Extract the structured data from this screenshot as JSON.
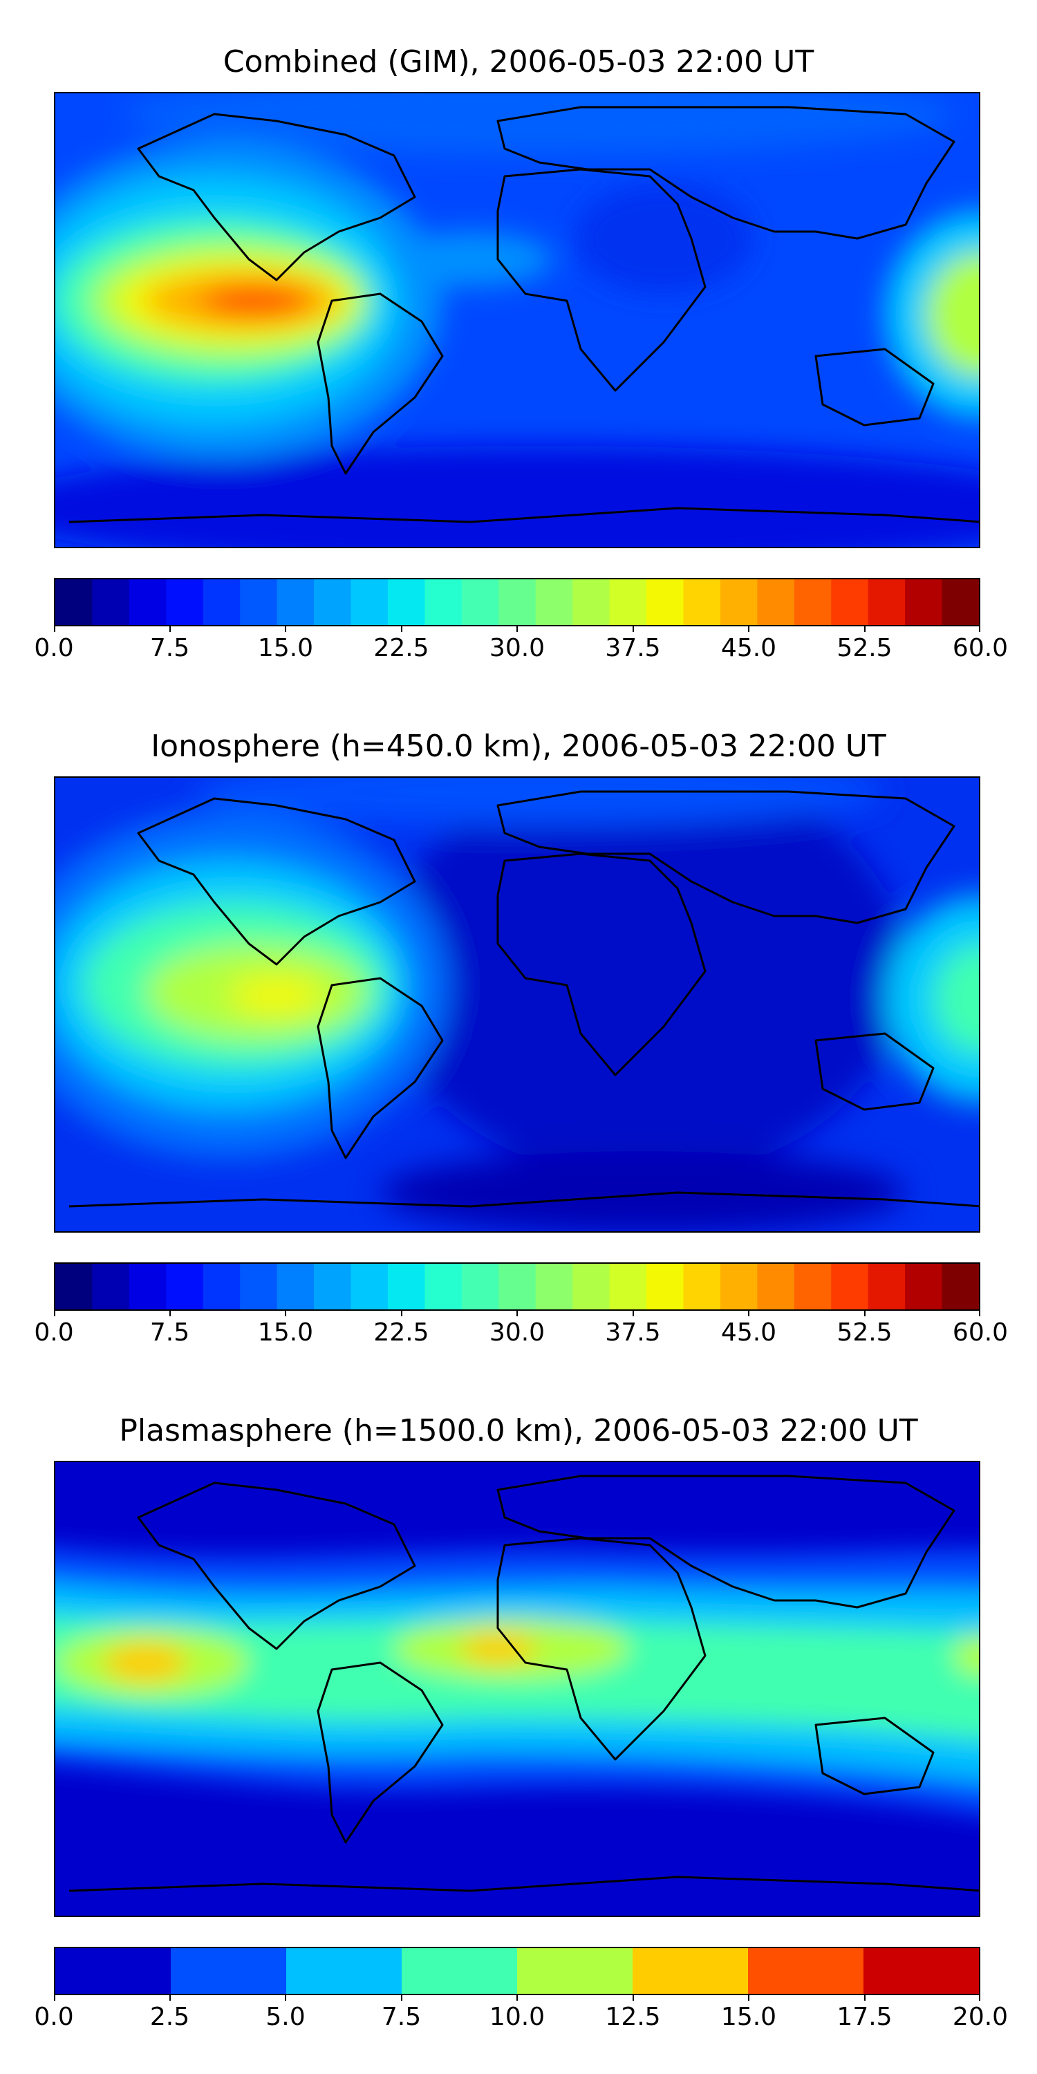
{
  "panels": [
    {
      "id": "combined",
      "title": "Combined (GIM), 2006-05-03 22:00 UT",
      "colorbar": {
        "ticks": [
          "0.0",
          "7.5",
          "15.0",
          "22.5",
          "30.0",
          "37.5",
          "45.0",
          "52.5",
          "60.0"
        ],
        "range": [
          0,
          60
        ],
        "levels": 24,
        "colors": [
          "#00007f",
          "#0000b2",
          "#0000e5",
          "#0010ff",
          "#0034ff",
          "#0058ff",
          "#0080ff",
          "#00a4ff",
          "#00c8ff",
          "#04e8f2",
          "#25ffd0",
          "#44ffb2",
          "#66ff8f",
          "#8cff6a",
          "#b0ff46",
          "#d2ff25",
          "#f4f802",
          "#ffd400",
          "#ffb000",
          "#ff8c00",
          "#ff6400",
          "#ff3c00",
          "#e41800",
          "#b20000",
          "#7f0000"
        ]
      }
    },
    {
      "id": "ionosphere",
      "title": "Ionosphere  (h=450.0 km), 2006-05-03 22:00 UT",
      "colorbar": {
        "ticks": [
          "0.0",
          "7.5",
          "15.0",
          "22.5",
          "30.0",
          "37.5",
          "45.0",
          "52.5",
          "60.0"
        ],
        "range": [
          0,
          60
        ],
        "levels": 24,
        "colors": [
          "#00007f",
          "#0000b2",
          "#0000e5",
          "#0010ff",
          "#0034ff",
          "#0058ff",
          "#0080ff",
          "#00a4ff",
          "#00c8ff",
          "#04e8f2",
          "#25ffd0",
          "#44ffb2",
          "#66ff8f",
          "#8cff6a",
          "#b0ff46",
          "#d2ff25",
          "#f4f802",
          "#ffd400",
          "#ffb000",
          "#ff8c00",
          "#ff6400",
          "#ff3c00",
          "#e41800",
          "#b20000",
          "#7f0000"
        ]
      }
    },
    {
      "id": "plasmasphere",
      "title": "Plasmasphere (h=1500.0 km), 2006-05-03 22:00 UT",
      "colorbar": {
        "ticks": [
          "0.0",
          "2.5",
          "5.0",
          "7.5",
          "10.0",
          "12.5",
          "15.0",
          "17.5",
          "20.0"
        ],
        "range": [
          0,
          20
        ],
        "levels": 8,
        "colors": [
          "#0000cc",
          "#0050ff",
          "#00c0ff",
          "#40ffb0",
          "#b0ff40",
          "#ffcc00",
          "#ff5000",
          "#cc0000"
        ]
      }
    }
  ],
  "colors": {
    "deep": "#0010e0",
    "blue": "#0040ff",
    "midblue": "#0070ff",
    "cyan": "#00c8ff",
    "aqua": "#40ffb0",
    "green": "#90ff60",
    "yellow": "#f4f802",
    "orange": "#ffb000",
    "red": "#ff5000",
    "coast": "#000000"
  }
}
